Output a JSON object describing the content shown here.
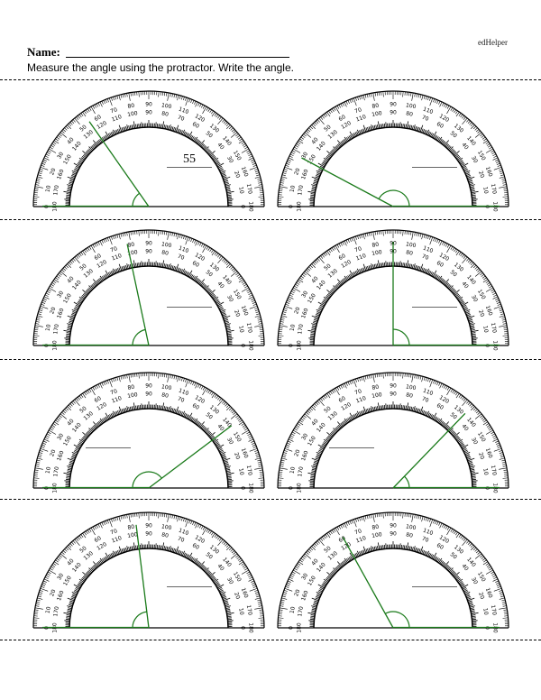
{
  "header": {
    "brand": "edHelper",
    "name_label": "Name:",
    "instructions": "Measure the angle using the protractor.  Write the angle."
  },
  "colors": {
    "ray": "#1a7a1a",
    "ink": "#000000",
    "blank_line": "#666666"
  },
  "problems": [
    {
      "ray_angle_deg": 125,
      "base": "left",
      "answer": "55"
    },
    {
      "ray_angle_deg": 152,
      "base": "right",
      "answer": ""
    },
    {
      "ray_angle_deg": 102,
      "base": "left",
      "answer": ""
    },
    {
      "ray_angle_deg": 90,
      "base": "right",
      "answer": ""
    },
    {
      "ray_angle_deg": 37,
      "base": "left",
      "answer": ""
    },
    {
      "ray_angle_deg": 46,
      "base": "right",
      "answer": ""
    },
    {
      "ray_angle_deg": 97,
      "base": "left",
      "answer": ""
    },
    {
      "ray_angle_deg": 119,
      "base": "right",
      "answer": ""
    }
  ]
}
